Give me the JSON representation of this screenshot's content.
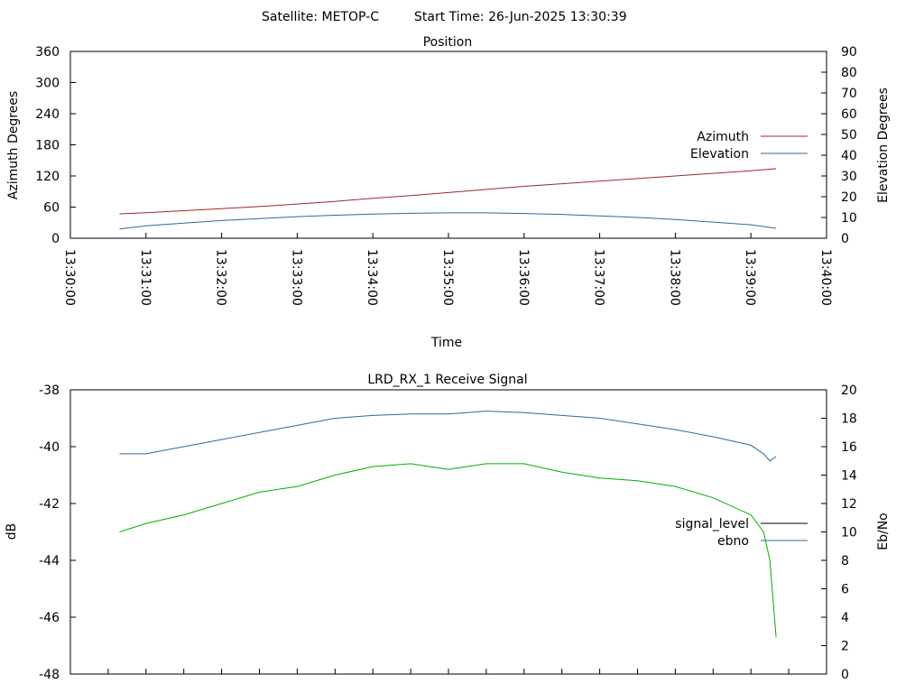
{
  "header": {
    "satellite": "Satellite: METOP-C",
    "start_time": "Start Time: 26-Jun-2025 13:30:39"
  },
  "chart_data": [
    {
      "type": "line",
      "title": "Position",
      "xlabel": "Time",
      "ylabel": "Azimuth Degrees",
      "y2label": "Elevation Degrees",
      "xlim": [
        "13:30:00",
        "13:40:00"
      ],
      "ylim": [
        0,
        360
      ],
      "y2lim": [
        0,
        90
      ],
      "x_ticks": [
        "13:30:00",
        "13:31:00",
        "13:32:00",
        "13:33:00",
        "13:34:00",
        "13:35:00",
        "13:36:00",
        "13:37:00",
        "13:38:00",
        "13:39:00",
        "13:40:00"
      ],
      "y_ticks": [
        "0",
        "60",
        "120",
        "180",
        "240",
        "300",
        "360"
      ],
      "y2_ticks": [
        "0",
        "10",
        "20",
        "30",
        "40",
        "50",
        "60",
        "70",
        "80",
        "90"
      ],
      "legend": "right",
      "grid": false,
      "x": [
        "13:30:39",
        "13:31:00",
        "13:31:30",
        "13:32:00",
        "13:32:30",
        "13:33:00",
        "13:33:30",
        "13:34:00",
        "13:34:30",
        "13:35:00",
        "13:35:30",
        "13:36:00",
        "13:36:30",
        "13:37:00",
        "13:37:30",
        "13:38:00",
        "13:38:30",
        "13:39:00",
        "13:39:20"
      ],
      "series": [
        {
          "name": "Azimuth",
          "axis": "left",
          "color": "#a0282c",
          "values": [
            47,
            49,
            53,
            57,
            61,
            66,
            71,
            77,
            82,
            88,
            94,
            100,
            105,
            110,
            115,
            120,
            125,
            130,
            134
          ]
        },
        {
          "name": "Elevation",
          "axis": "right",
          "color": "#2c6aa0",
          "values": [
            4.5,
            6.0,
            7.3,
            8.5,
            9.5,
            10.4,
            11.1,
            11.6,
            12.0,
            12.2,
            12.2,
            11.9,
            11.5,
            10.8,
            10.0,
            9.0,
            7.8,
            6.5,
            4.8
          ]
        }
      ]
    },
    {
      "type": "line",
      "title": "LRD_RX_1 Receive Signal",
      "ylabel": "dB",
      "y2label": "Eb/No",
      "ylim": [
        -48,
        -38
      ],
      "y2lim": [
        0,
        20
      ],
      "y_ticks": [
        "-38",
        "-40",
        "-42",
        "-44",
        "-46",
        "-48"
      ],
      "y2_ticks": [
        "0",
        "2",
        "4",
        "6",
        "8",
        "10",
        "12",
        "14",
        "16",
        "18",
        "20"
      ],
      "legend": "right",
      "grid": false,
      "x": [
        "13:30:39",
        "13:31:00",
        "13:31:30",
        "13:32:00",
        "13:32:30",
        "13:33:00",
        "13:33:30",
        "13:34:00",
        "13:34:30",
        "13:35:00",
        "13:35:30",
        "13:36:00",
        "13:36:30",
        "13:37:00",
        "13:37:30",
        "13:38:00",
        "13:38:30",
        "13:39:00",
        "13:39:10",
        "13:39:15",
        "13:39:20"
      ],
      "series": [
        {
          "name": "signal_level",
          "axis": "left",
          "color": "#000000",
          "values": [
            -43.0,
            -42.7,
            -42.4,
            -42.0,
            -41.6,
            -41.4,
            -41.0,
            -40.7,
            -40.6,
            -40.8,
            -40.6,
            -40.6,
            -40.9,
            -41.1,
            -41.2,
            -41.4,
            -41.8,
            -42.4,
            -43.0,
            -44.0,
            -46.7
          ]
        },
        {
          "name": "ebno",
          "axis": "right",
          "color": "#2c6aa0",
          "values": [
            15.5,
            15.5,
            16.0,
            16.5,
            17.0,
            17.5,
            18.0,
            18.2,
            18.3,
            18.3,
            18.5,
            18.4,
            18.2,
            18.0,
            17.6,
            17.2,
            16.7,
            16.1,
            15.5,
            15.0,
            15.3
          ]
        }
      ]
    }
  ]
}
